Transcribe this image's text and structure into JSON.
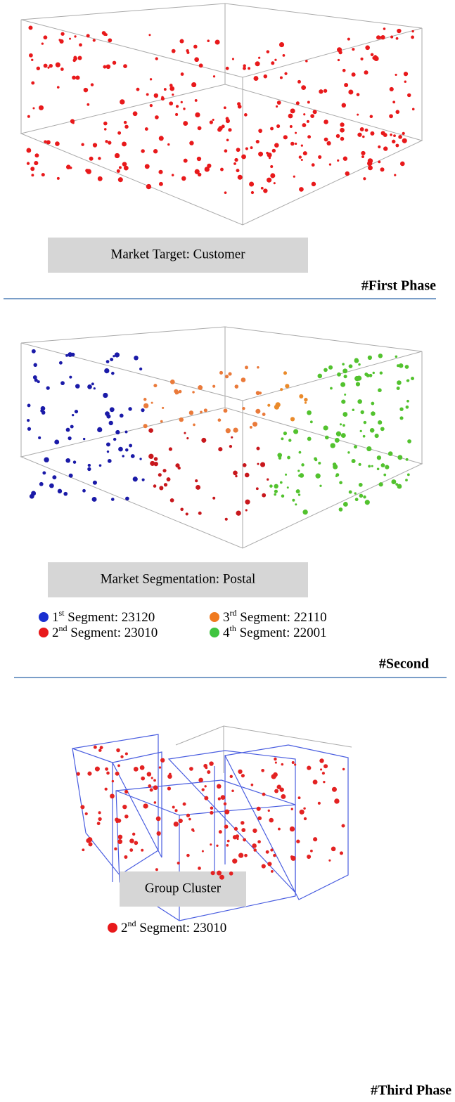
{
  "phases": [
    {
      "caption": "Market Target: Customer",
      "heading": "#First Phase"
    },
    {
      "caption": "Market Segmentation: Postal",
      "heading": "#Second",
      "legend": [
        {
          "ordinal": "1",
          "suffix": "st",
          "label": " Segment: 23120"
        },
        {
          "ordinal": "2",
          "suffix": "nd",
          "label": " Segment: 23010"
        },
        {
          "ordinal": "3",
          "suffix": "rd",
          "label": " Segment: 22110"
        },
        {
          "ordinal": "4",
          "suffix": "th",
          "label": " Segment: 22001"
        }
      ]
    },
    {
      "caption": "Group Cluster",
      "heading": "#Third Phase",
      "legend": [
        {
          "ordinal": "2",
          "suffix": "nd",
          "label": " Segment: 23010"
        }
      ]
    }
  ]
}
